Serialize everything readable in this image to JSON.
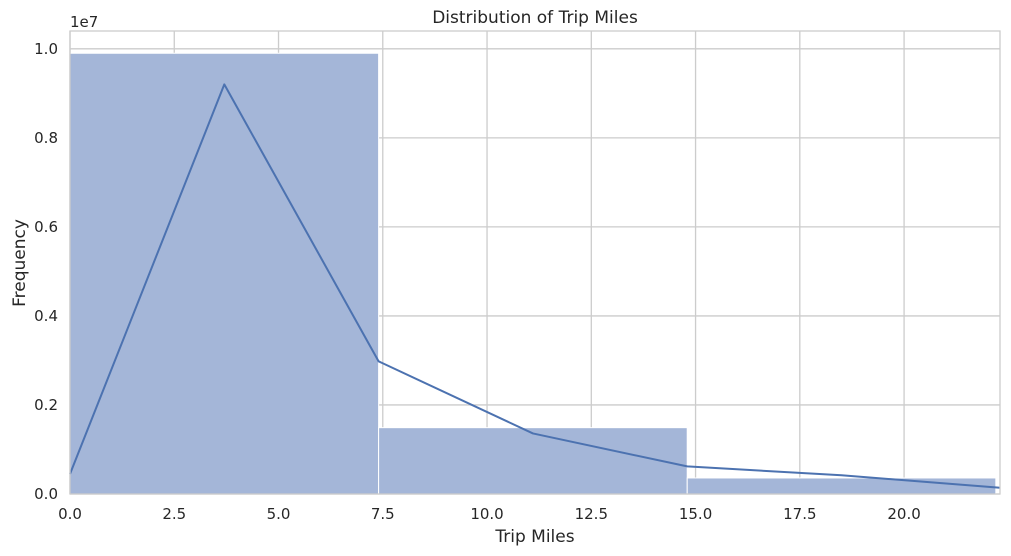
{
  "chart_data": {
    "type": "bar",
    "title": "Distribution of Trip Miles",
    "xlabel": "Trip Miles",
    "ylabel": "Frequency",
    "offset_text": "1e7",
    "xlim": [
      0,
      22.3
    ],
    "ylim": [
      0,
      1.04
    ],
    "x_ticks": [
      0,
      2.5,
      5,
      7.5,
      10,
      12.5,
      15,
      17.5,
      20
    ],
    "x_tick_labels": [
      "0.0",
      "2.5",
      "5.0",
      "7.5",
      "10.0",
      "12.5",
      "15.0",
      "17.5",
      "20.0"
    ],
    "y_ticks": [
      0,
      0.2,
      0.4,
      0.6,
      0.8,
      1.0
    ],
    "y_tick_labels": [
      "0.0",
      "0.2",
      "0.4",
      "0.6",
      "0.8",
      "1.0"
    ],
    "bins": [
      {
        "x0": 0.0,
        "x1": 7.4,
        "value": 0.99
      },
      {
        "x0": 7.4,
        "x1": 14.8,
        "value": 0.149
      },
      {
        "x0": 14.8,
        "x1": 22.2,
        "value": 0.036
      }
    ],
    "kde_line": {
      "x": [
        0.0,
        3.7,
        7.4,
        11.1,
        14.8,
        18.5,
        22.3
      ],
      "y": [
        0.045,
        0.92,
        0.298,
        0.136,
        0.062,
        0.042,
        0.014
      ]
    },
    "colors": {
      "bar": "#a4b6d8",
      "line": "#4c72b0",
      "grid": "#cccccc",
      "text": "#262626"
    }
  }
}
